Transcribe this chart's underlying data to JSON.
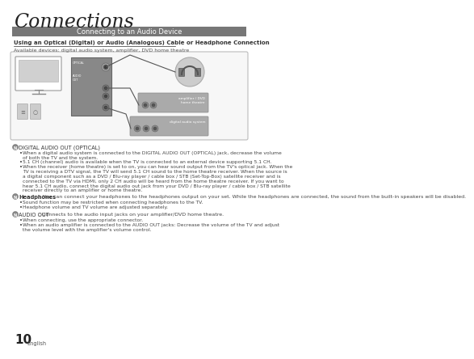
{
  "title": "Connections",
  "section_header": "Connecting to an Audio Device",
  "subsection_header": "Using an Optical (Digital) or Audio (Analogous) Cable or Headphone Connection",
  "available_devices": "Available devices: digital audio system, amplifier, DVD home theatre",
  "page_number": "10",
  "page_lang": "English",
  "bg_color": "#ffffff",
  "header_bg": "#777777",
  "header_text_color": "#ffffff",
  "text_color": "#333333",
  "note_sections": [
    {
      "label": "DIGITAL AUDIO OUT (OPTICAL)",
      "label_bold": false,
      "label_extra": "",
      "bullets": [
        "When a digital audio system is connected to the DIGITAL AUDIO OUT (OPTICAL) jack, decrease the volume\nof both the TV and the system.",
        "5.1 CH (channel) audio is available when the TV is connected to an external device supporting 5.1 CH.",
        "When the receiver (home theatre) is set to on, you can hear sound output from the TV's optical jack. When the\nTV is receiving a DTV signal, the TV will send 5.1 CH sound to the home theatre receiver. When the source is\na digital component such as a DVD / Blu-ray player / cable box / STB (Set-Top-Box) satellite receiver and is\nconnected to the TV via HDMI, only 2 CH audio will be heard from the home theatre receiver. If you want to\nhear 5.1 CH audio, connect the digital audio out jack from your DVD / Blu-ray player / cable box / STB satellite\nreceiver directly to an amplifier or home theatre."
      ]
    },
    {
      "label": "Headphones",
      "label_bold": true,
      "label_extra": " You can connect your headphones to the headphones output on your set. While the headphones are connected, the sound from the built-in speakers will be disabled.",
      "bullets": [
        "Sound function may be restricted when connecting headphones to the TV.",
        "Headphone volume and TV volume are adjusted separately."
      ]
    },
    {
      "label": "AUDIO OUT",
      "label_bold": false,
      "label_extra": ": Connects to the audio input jacks on your amplifier/DVD home theatre.",
      "bullets": [
        "When connecting, use the appropriate connector.",
        "When an audio amplifier is connected to the AUDIO OUT jacks: Decrease the volume of the TV and adjust\nthe volume level with the amplifier's volume control."
      ]
    }
  ]
}
